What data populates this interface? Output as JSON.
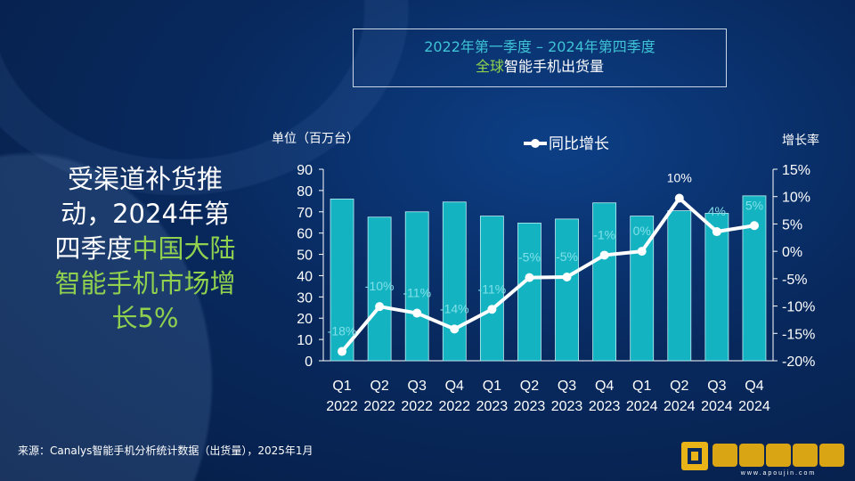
{
  "title": {
    "line1": "2022年第一季度 – 2024年第四季度",
    "line2_green": "全球",
    "line2_white": "智能手机出货量"
  },
  "headline": {
    "white": "受渠道补货推动，2024年第四季度",
    "green": "中国大陆智能手机市场增长5%"
  },
  "source": "来源：Canalys智能手机分析统计数据（出货量），2025年1月",
  "logo": {
    "text": "欧金软件园",
    "url_text": "www.apoujin.com"
  },
  "colors": {
    "bar": "#14b3c2",
    "line": "#ffffff",
    "label": "#7fe0e8",
    "accent_green": "#8fd14f",
    "title_cyan": "#3ec3d6"
  },
  "chart_data": {
    "type": "bar+line",
    "left_axis_label": "单位（百万台）",
    "right_axis_label": "增长率",
    "legend": {
      "label": "同比增长",
      "placement": "top"
    },
    "categories": [
      [
        "Q1",
        "2022"
      ],
      [
        "Q2",
        "2022"
      ],
      [
        "Q3",
        "2022"
      ],
      [
        "Q4",
        "2022"
      ],
      [
        "Q1",
        "2023"
      ],
      [
        "Q2",
        "2023"
      ],
      [
        "Q3",
        "2023"
      ],
      [
        "Q4",
        "2023"
      ],
      [
        "Q1",
        "2024"
      ],
      [
        "Q2",
        "2024"
      ],
      [
        "Q3",
        "2024"
      ],
      [
        "Q4",
        "2024"
      ]
    ],
    "bars": [
      76,
      67.5,
      70,
      74.6,
      68,
      64.7,
      66.6,
      74.2,
      68,
      70.5,
      69.3,
      77.5
    ],
    "growth": [
      -18.3,
      -10.1,
      -11.3,
      -14.2,
      -10.6,
      -4.8,
      -4.7,
      -0.7,
      0,
      9.7,
      3.6,
      4.7
    ],
    "growth_labels": [
      "-18%",
      "-10%",
      "-11%",
      "-14%",
      "-11%",
      "-5%",
      "-5%",
      "-1%",
      "0%",
      "10%",
      "4%",
      "5%"
    ],
    "ylim_left": [
      0,
      90
    ],
    "yticks_left": [
      0,
      10,
      20,
      30,
      40,
      50,
      60,
      70,
      80,
      90
    ],
    "ylim_right": [
      -20,
      15
    ],
    "yticks_right": [
      "-20%",
      "-15%",
      "-10%",
      "-5%",
      "0%",
      "5%",
      "10%",
      "15%"
    ],
    "grid": false
  }
}
